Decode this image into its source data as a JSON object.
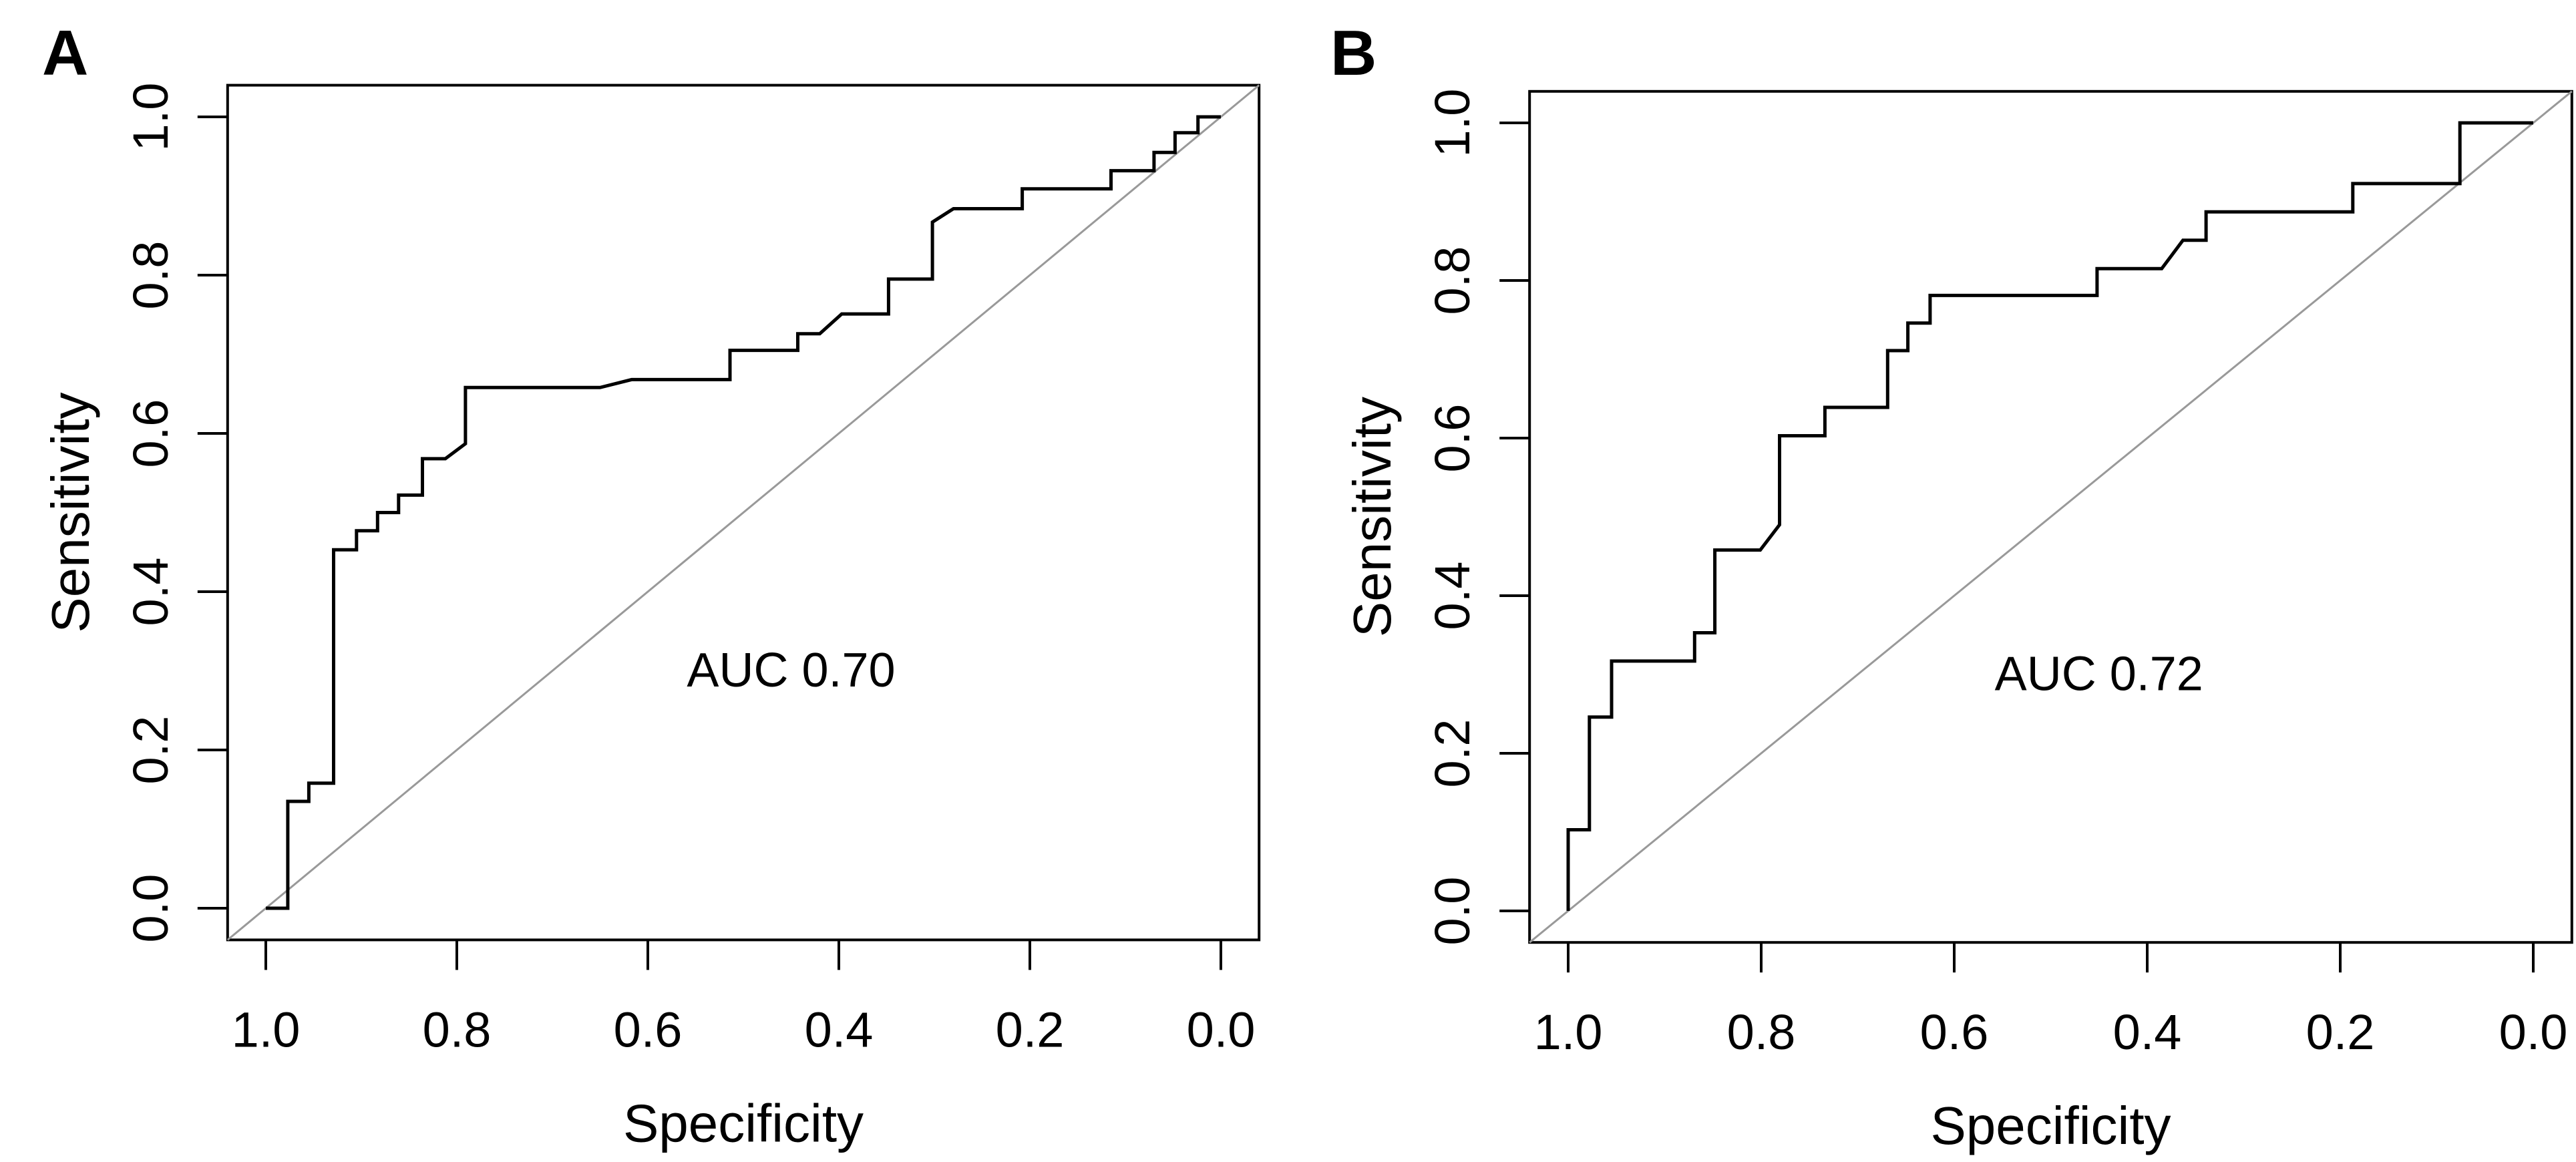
{
  "figure": {
    "background": "#ffffff",
    "curve_color": "#000000",
    "reference_line_color": "#999999",
    "axis_color": "#000000"
  },
  "chart_data": [
    {
      "type": "line",
      "subtype": "roc-step-curve",
      "panel_label": "A",
      "title": "",
      "xlabel": "Specificity",
      "ylabel": "Sensitivity",
      "x_reversed": true,
      "xlim": [
        1.04,
        -0.04
      ],
      "ylim": [
        -0.04,
        1.04
      ],
      "grid": false,
      "x_tick_labels": [
        "1.0",
        "0.8",
        "0.6",
        "0.4",
        "0.2",
        "0.0"
      ],
      "y_tick_labels": [
        "0.0",
        "0.2",
        "0.4",
        "0.6",
        "0.8",
        "1.0"
      ],
      "annotation": {
        "text": "AUC 0.70",
        "x": 0.45,
        "y": 0.28
      },
      "reference_line": {
        "from": [
          1.0,
          0.0
        ],
        "to": [
          0.0,
          1.0
        ]
      },
      "series": [
        {
          "name": "ROC curve",
          "points": [
            [
              1.0,
              0.0
            ],
            [
              0.977,
              0.0
            ],
            [
              0.977,
              0.135
            ],
            [
              0.955,
              0.135
            ],
            [
              0.955,
              0.158
            ],
            [
              0.929,
              0.158
            ],
            [
              0.929,
              0.453
            ],
            [
              0.905,
              0.453
            ],
            [
              0.905,
              0.477
            ],
            [
              0.883,
              0.477
            ],
            [
              0.883,
              0.5
            ],
            [
              0.861,
              0.5
            ],
            [
              0.861,
              0.522
            ],
            [
              0.836,
              0.522
            ],
            [
              0.836,
              0.568
            ],
            [
              0.812,
              0.568
            ],
            [
              0.791,
              0.587
            ],
            [
              0.791,
              0.658
            ],
            [
              0.65,
              0.658
            ],
            [
              0.617,
              0.668
            ],
            [
              0.514,
              0.668
            ],
            [
              0.514,
              0.705
            ],
            [
              0.443,
              0.705
            ],
            [
              0.443,
              0.726
            ],
            [
              0.42,
              0.726
            ],
            [
              0.397,
              0.751
            ],
            [
              0.348,
              0.751
            ],
            [
              0.348,
              0.795
            ],
            [
              0.302,
              0.795
            ],
            [
              0.302,
              0.867
            ],
            [
              0.28,
              0.884
            ],
            [
              0.208,
              0.884
            ],
            [
              0.208,
              0.909
            ],
            [
              0.115,
              0.909
            ],
            [
              0.115,
              0.932
            ],
            [
              0.07,
              0.932
            ],
            [
              0.07,
              0.955
            ],
            [
              0.048,
              0.955
            ],
            [
              0.048,
              0.98
            ],
            [
              0.024,
              0.98
            ],
            [
              0.024,
              1.0
            ],
            [
              0.0,
              1.0
            ]
          ]
        }
      ]
    },
    {
      "type": "line",
      "subtype": "roc-step-curve",
      "panel_label": "B",
      "title": "",
      "xlabel": "Specificity",
      "ylabel": "Sensitivity",
      "x_reversed": true,
      "xlim": [
        1.04,
        -0.04
      ],
      "ylim": [
        -0.04,
        1.04
      ],
      "grid": false,
      "x_tick_labels": [
        "1.0",
        "0.8",
        "0.6",
        "0.4",
        "0.2",
        "0.0"
      ],
      "y_tick_labels": [
        "0.0",
        "0.2",
        "0.4",
        "0.6",
        "0.8",
        "1.0"
      ],
      "annotation": {
        "text": "AUC 0.72",
        "x": 0.45,
        "y": 0.28
      },
      "reference_line": {
        "from": [
          1.0,
          0.0
        ],
        "to": [
          0.0,
          1.0
        ]
      },
      "series": [
        {
          "name": "ROC curve",
          "points": [
            [
              1.0,
              0.0
            ],
            [
              1.0,
              0.103
            ],
            [
              0.978,
              0.103
            ],
            [
              0.978,
              0.246
            ],
            [
              0.955,
              0.246
            ],
            [
              0.955,
              0.317
            ],
            [
              0.869,
              0.317
            ],
            [
              0.869,
              0.353
            ],
            [
              0.848,
              0.353
            ],
            [
              0.848,
              0.458
            ],
            [
              0.801,
              0.458
            ],
            [
              0.781,
              0.49
            ],
            [
              0.781,
              0.603
            ],
            [
              0.734,
              0.603
            ],
            [
              0.734,
              0.639
            ],
            [
              0.669,
              0.639
            ],
            [
              0.669,
              0.711
            ],
            [
              0.648,
              0.711
            ],
            [
              0.648,
              0.746
            ],
            [
              0.625,
              0.746
            ],
            [
              0.625,
              0.781
            ],
            [
              0.452,
              0.781
            ],
            [
              0.452,
              0.815
            ],
            [
              0.385,
              0.815
            ],
            [
              0.363,
              0.851
            ],
            [
              0.339,
              0.851
            ],
            [
              0.339,
              0.887
            ],
            [
              0.187,
              0.887
            ],
            [
              0.187,
              0.923
            ],
            [
              0.076,
              0.923
            ],
            [
              0.076,
              1.0
            ],
            [
              0.0,
              1.0
            ]
          ]
        }
      ]
    }
  ]
}
